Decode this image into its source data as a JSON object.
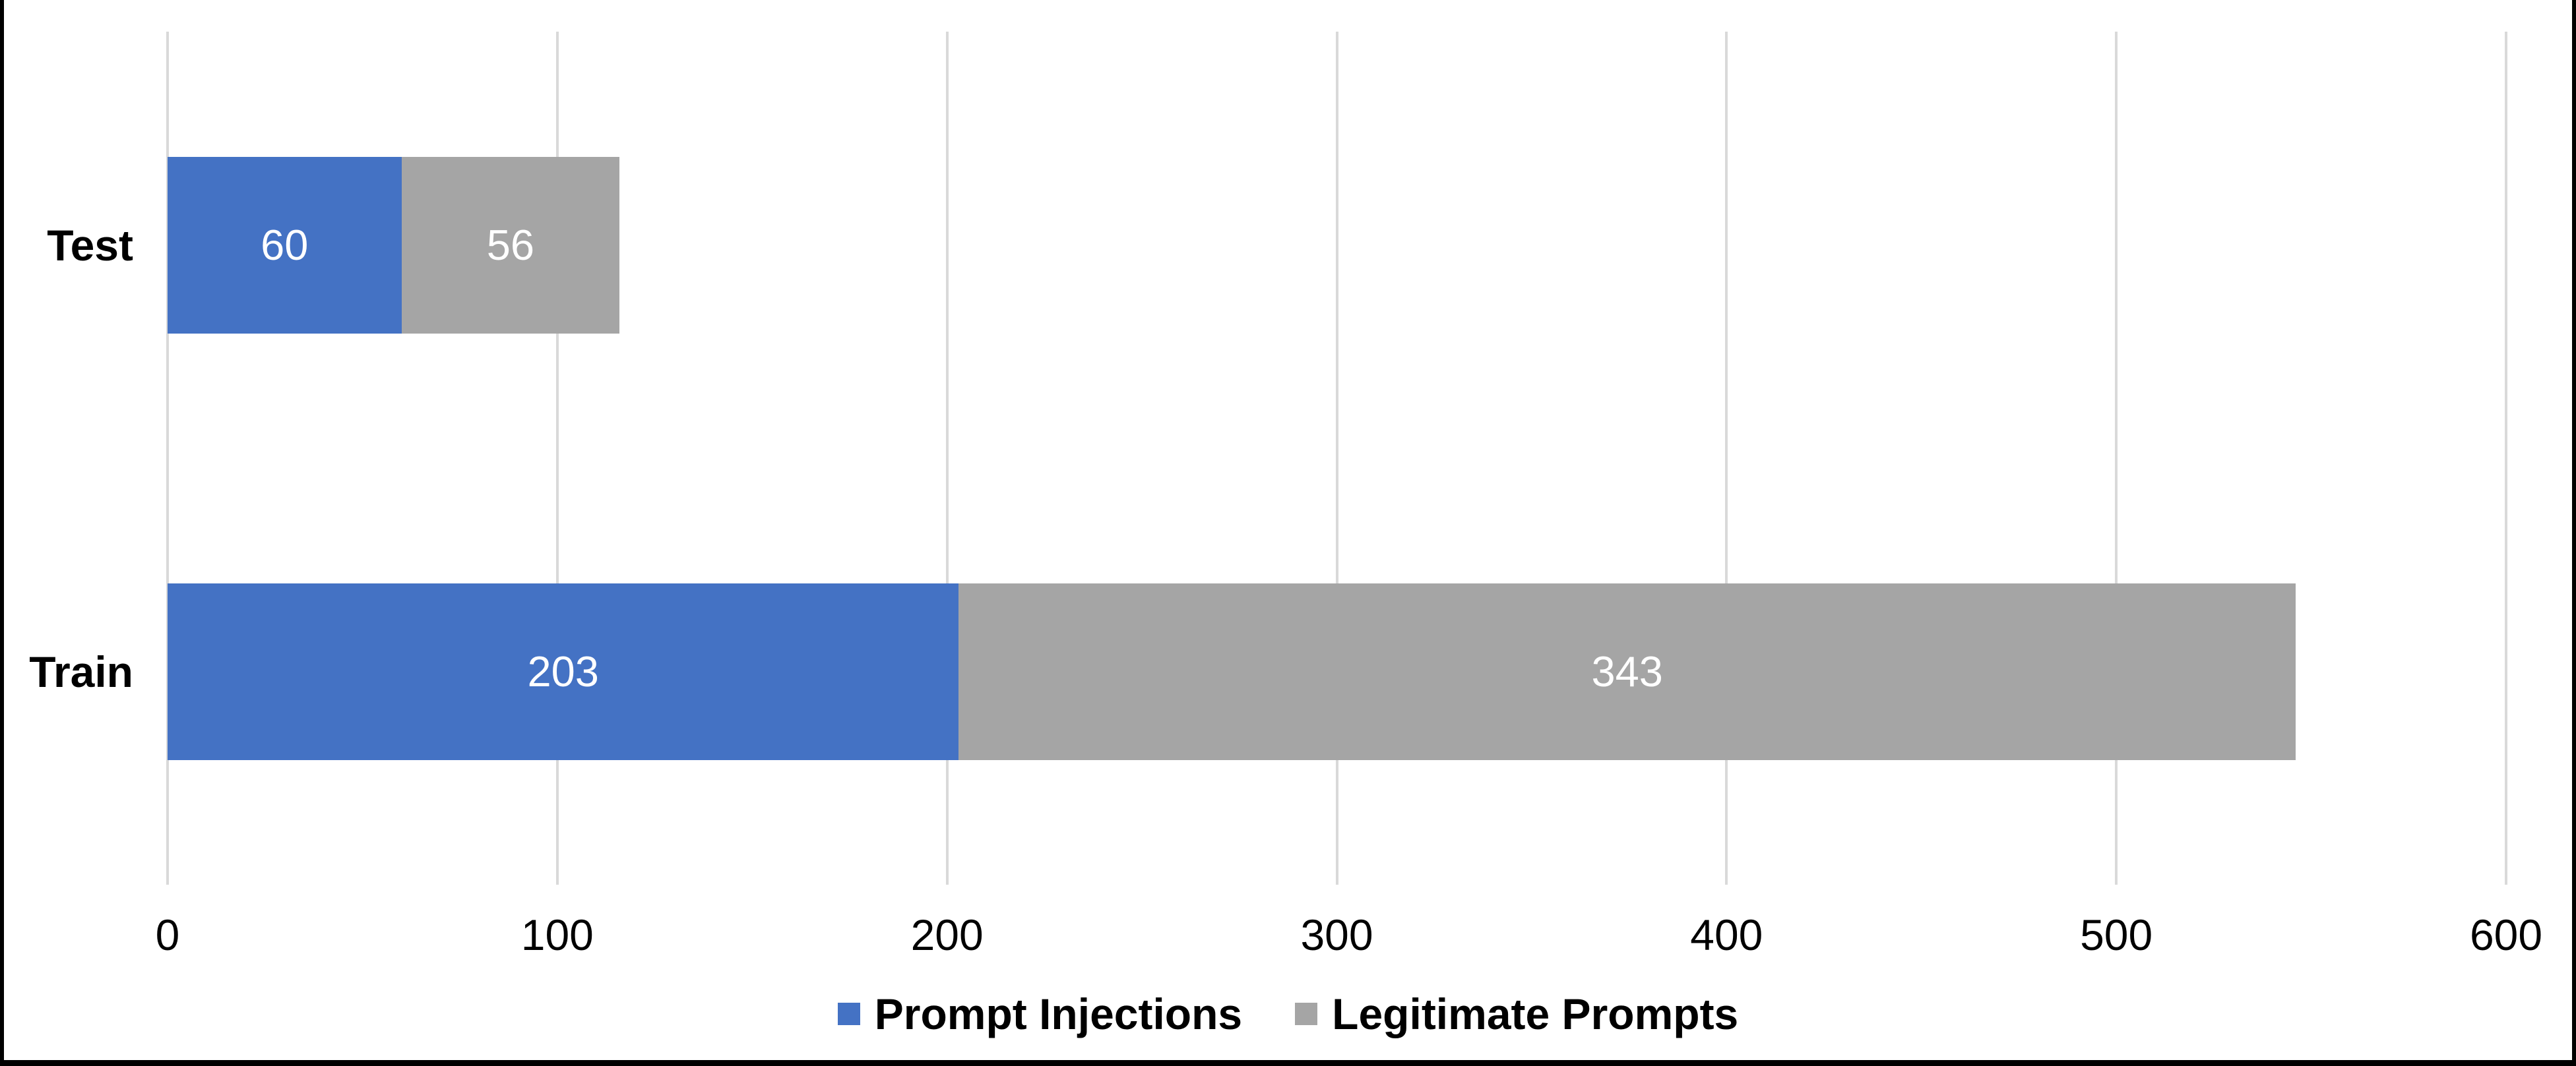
{
  "chart_data": {
    "type": "bar",
    "orientation": "horizontal",
    "stacked": true,
    "title": "",
    "xlabel": "",
    "ylabel": "",
    "categories": [
      "Test",
      "Train"
    ],
    "series": [
      {
        "name": "Prompt Injections",
        "color": "#4472C4",
        "values": [
          60,
          203
        ]
      },
      {
        "name": "Legitimate Prompts",
        "color": "#A5A5A5",
        "values": [
          56,
          343
        ]
      }
    ],
    "data_labels": [
      [
        "60",
        "203"
      ],
      [
        "56",
        "343"
      ]
    ],
    "xlim": [
      0,
      600
    ],
    "xticks": [
      0,
      100,
      200,
      300,
      400,
      500,
      600
    ],
    "grid": true,
    "gridline_color": "#D9D9D9",
    "data_label_color": "#FFFFFF",
    "legend_position": "bottom-center"
  },
  "frame": {
    "border_color": "#000000",
    "background_color": "#FFFFFF"
  }
}
